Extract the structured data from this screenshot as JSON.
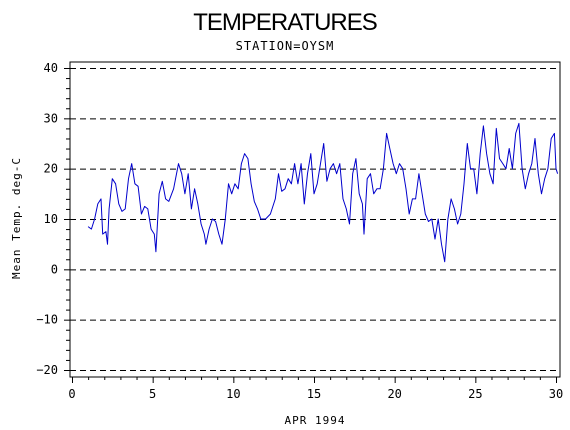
{
  "chart_data": {
    "type": "line",
    "title": "TEMPERATURES",
    "subtitle": "STATION=OYSM",
    "xlabel": "APR 1994",
    "ylabel": "Mean Temp. deg-C",
    "xlim": [
      0,
      30
    ],
    "ylim": [
      -20,
      40
    ],
    "x_ticks": [
      0,
      5,
      10,
      15,
      20,
      25,
      30
    ],
    "y_ticks": [
      -20,
      -10,
      0,
      10,
      20,
      30,
      40
    ],
    "y_gridlines": [
      -20,
      -10,
      0,
      10,
      20,
      30,
      40
    ],
    "grid_style": "dashed",
    "line_color": "#0000cc",
    "series": [
      {
        "values": [
          [
            1.0,
            8.5
          ],
          [
            1.2,
            8.0
          ],
          [
            1.4,
            10.0
          ],
          [
            1.6,
            13.0
          ],
          [
            1.8,
            14.0
          ],
          [
            1.9,
            7.0
          ],
          [
            2.1,
            7.5
          ],
          [
            2.2,
            5.0
          ],
          [
            2.3,
            12.0
          ],
          [
            2.5,
            18.0
          ],
          [
            2.7,
            17.0
          ],
          [
            2.9,
            13.0
          ],
          [
            3.1,
            11.5
          ],
          [
            3.3,
            12.0
          ],
          [
            3.5,
            18.0
          ],
          [
            3.7,
            21.0
          ],
          [
            3.9,
            17.0
          ],
          [
            4.1,
            16.5
          ],
          [
            4.3,
            11.0
          ],
          [
            4.5,
            12.5
          ],
          [
            4.7,
            12.0
          ],
          [
            4.9,
            8.0
          ],
          [
            5.1,
            7.0
          ],
          [
            5.2,
            3.5
          ],
          [
            5.4,
            15.0
          ],
          [
            5.6,
            17.5
          ],
          [
            5.8,
            14.0
          ],
          [
            6.0,
            13.5
          ],
          [
            6.3,
            16.0
          ],
          [
            6.6,
            21.0
          ],
          [
            6.8,
            19.0
          ],
          [
            7.0,
            15.0
          ],
          [
            7.2,
            19.0
          ],
          [
            7.4,
            12.0
          ],
          [
            7.6,
            16.0
          ],
          [
            7.8,
            13.0
          ],
          [
            8.0,
            9.0
          ],
          [
            8.2,
            7.0
          ],
          [
            8.3,
            5.0
          ],
          [
            8.5,
            8.0
          ],
          [
            8.7,
            10.0
          ],
          [
            8.9,
            9.5
          ],
          [
            9.1,
            7.0
          ],
          [
            9.3,
            5.0
          ],
          [
            9.5,
            10.0
          ],
          [
            9.7,
            17.0
          ],
          [
            9.9,
            15.0
          ],
          [
            10.1,
            17.0
          ],
          [
            10.3,
            16.0
          ],
          [
            10.5,
            21.0
          ],
          [
            10.7,
            23.0
          ],
          [
            10.9,
            22.0
          ],
          [
            11.1,
            17.0
          ],
          [
            11.3,
            13.5
          ],
          [
            11.5,
            12.0
          ],
          [
            11.7,
            10.0
          ],
          [
            12.0,
            10.0
          ],
          [
            12.3,
            11.0
          ],
          [
            12.6,
            14.0
          ],
          [
            12.8,
            19.0
          ],
          [
            13.0,
            15.5
          ],
          [
            13.2,
            16.0
          ],
          [
            13.4,
            18.0
          ],
          [
            13.6,
            17.0
          ],
          [
            13.8,
            21.0
          ],
          [
            14.0,
            17.0
          ],
          [
            14.2,
            21.0
          ],
          [
            14.4,
            13.0
          ],
          [
            14.6,
            19.0
          ],
          [
            14.8,
            23.0
          ],
          [
            15.0,
            15.0
          ],
          [
            15.2,
            17.0
          ],
          [
            15.4,
            21.0
          ],
          [
            15.6,
            25.0
          ],
          [
            15.8,
            17.5
          ],
          [
            16.0,
            20.0
          ],
          [
            16.2,
            21.0
          ],
          [
            16.4,
            19.0
          ],
          [
            16.6,
            21.0
          ],
          [
            16.8,
            14.0
          ],
          [
            17.0,
            12.0
          ],
          [
            17.2,
            9.0
          ],
          [
            17.4,
            19.0
          ],
          [
            17.6,
            22.0
          ],
          [
            17.8,
            15.0
          ],
          [
            18.0,
            13.0
          ],
          [
            18.1,
            7.0
          ],
          [
            18.3,
            18.0
          ],
          [
            18.5,
            19.0
          ],
          [
            18.7,
            15.0
          ],
          [
            18.9,
            16.0
          ],
          [
            19.1,
            16.0
          ],
          [
            19.3,
            20.0
          ],
          [
            19.5,
            27.0
          ],
          [
            19.7,
            24.0
          ],
          [
            19.9,
            21.0
          ],
          [
            20.1,
            19.0
          ],
          [
            20.3,
            21.0
          ],
          [
            20.5,
            20.0
          ],
          [
            20.7,
            16.0
          ],
          [
            20.9,
            11.0
          ],
          [
            21.1,
            14.0
          ],
          [
            21.3,
            14.0
          ],
          [
            21.5,
            19.0
          ],
          [
            21.7,
            15.0
          ],
          [
            21.9,
            11.0
          ],
          [
            22.1,
            9.5
          ],
          [
            22.3,
            10.0
          ],
          [
            22.5,
            6.0
          ],
          [
            22.7,
            10.0
          ],
          [
            22.9,
            5.0
          ],
          [
            23.1,
            1.5
          ],
          [
            23.3,
            10.0
          ],
          [
            23.5,
            14.0
          ],
          [
            23.7,
            12.0
          ],
          [
            23.9,
            9.0
          ],
          [
            24.1,
            11.0
          ],
          [
            24.3,
            17.0
          ],
          [
            24.5,
            25.0
          ],
          [
            24.7,
            20.0
          ],
          [
            24.9,
            20.0
          ],
          [
            25.1,
            15.0
          ],
          [
            25.3,
            23.0
          ],
          [
            25.5,
            28.5
          ],
          [
            25.7,
            23.0
          ],
          [
            25.9,
            19.0
          ],
          [
            26.1,
            17.0
          ],
          [
            26.3,
            28.0
          ],
          [
            26.5,
            22.0
          ],
          [
            26.7,
            21.0
          ],
          [
            26.9,
            20.0
          ],
          [
            27.1,
            24.0
          ],
          [
            27.3,
            20.0
          ],
          [
            27.5,
            27.0
          ],
          [
            27.7,
            29.0
          ],
          [
            27.9,
            20.0
          ],
          [
            28.1,
            16.0
          ],
          [
            28.3,
            19.0
          ],
          [
            28.5,
            21.0
          ],
          [
            28.7,
            26.0
          ],
          [
            28.9,
            19.0
          ],
          [
            29.1,
            15.0
          ],
          [
            29.3,
            18.0
          ],
          [
            29.5,
            20.0
          ],
          [
            29.7,
            26.0
          ],
          [
            29.9,
            27.0
          ],
          [
            30.0,
            20.0
          ],
          [
            30.1,
            19.0
          ]
        ]
      }
    ]
  }
}
